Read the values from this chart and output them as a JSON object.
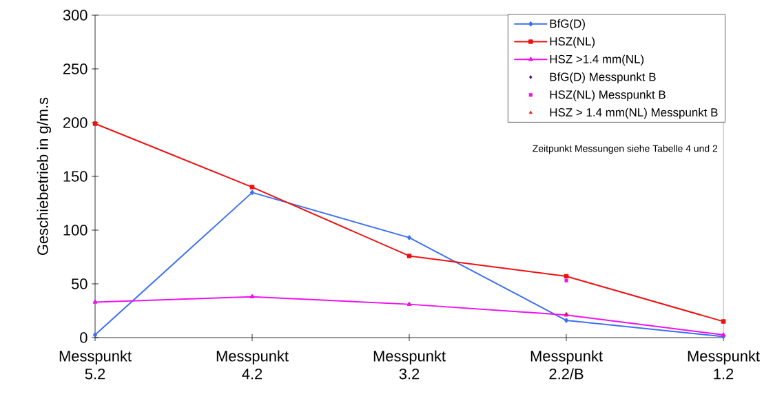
{
  "chart_data": {
    "type": "line",
    "ylabel": "Geschiebetrieb in g/m.s",
    "categories": [
      "Messpunkt 5.2",
      "Messpunkt 4.2",
      "Messpunkt 3.2",
      "Messpunkt 2.2/B",
      "Messpunkt 1.2"
    ],
    "series": [
      {
        "name": "BfG(D)",
        "color": "#3b6ff5",
        "marker": "diamond",
        "values": [
          2.5,
          135,
          93,
          16,
          1
        ]
      },
      {
        "name": "HSZ(NL)",
        "color": "#f01010",
        "marker": "square",
        "values": [
          199,
          140,
          76,
          57,
          15
        ]
      },
      {
        "name": "HSZ >1.4 mm(NL)",
        "color": "#f010f0",
        "marker": "triangle",
        "values": [
          33,
          38,
          31,
          21,
          2.5
        ]
      },
      {
        "name": "BfG(D) Messpunkt B",
        "type": "scatter",
        "color": "#5a0a8a",
        "marker": "diamond",
        "values": [
          null,
          null,
          null,
          null,
          null
        ]
      },
      {
        "name": "HSZ(NL) Messpunkt B",
        "type": "scatter",
        "color": "#f010f0",
        "marker": "square",
        "values": [
          null,
          null,
          null,
          53,
          null
        ]
      },
      {
        "name": "HSZ > 1.4 mm(NL) Messpunkt B",
        "type": "scatter",
        "color": "#f01010",
        "marker": "triangle",
        "values": [
          null,
          null,
          null,
          22,
          null
        ]
      }
    ],
    "ylim": [
      0,
      300
    ],
    "yticks": [
      0,
      50,
      100,
      150,
      200,
      250,
      300
    ],
    "legend": "top right",
    "grid": false,
    "annotations": [
      "Zeitpunkt Messungen siehe Tabelle 4 und 2"
    ]
  }
}
